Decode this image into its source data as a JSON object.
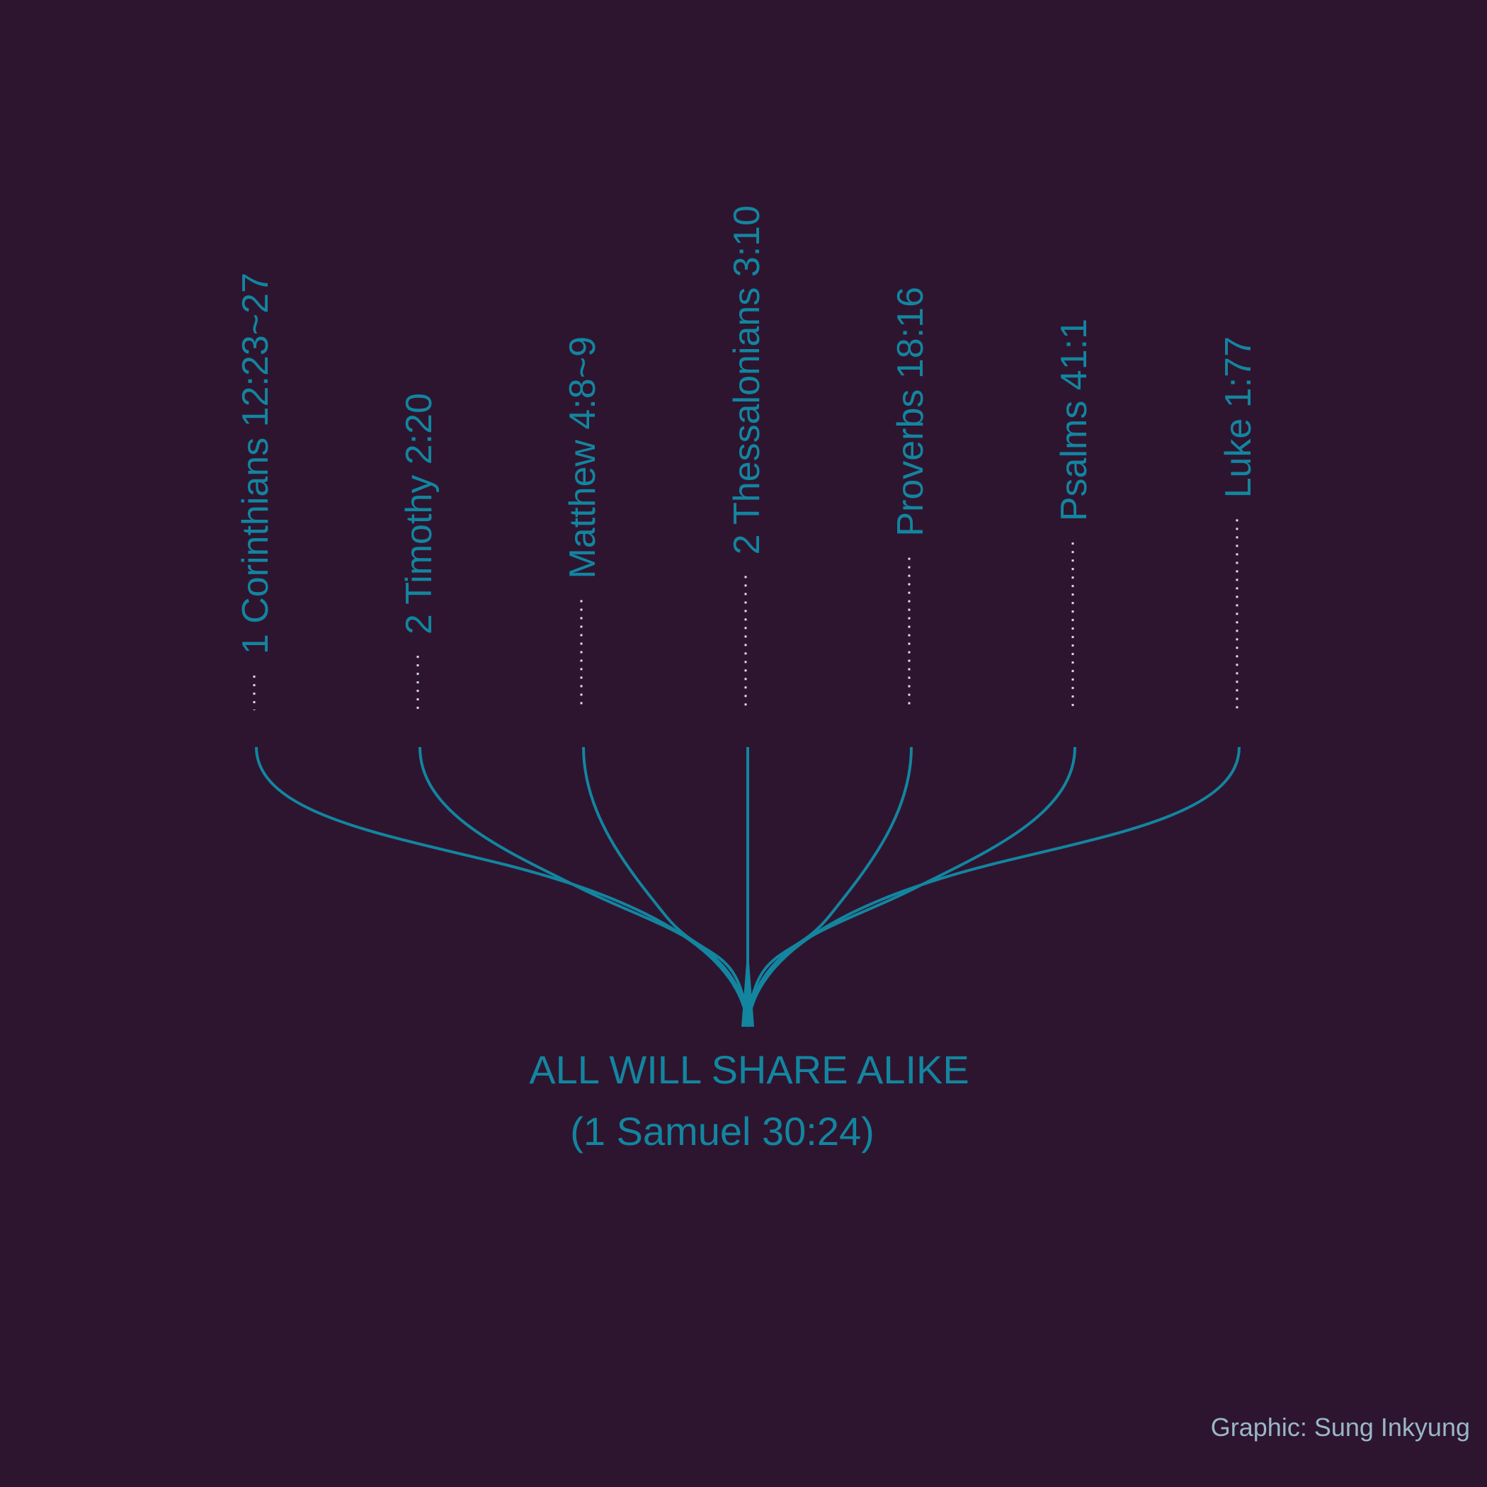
{
  "colors": {
    "background": "#2d1530",
    "accent": "#13859f",
    "dots": "#e0e0e0",
    "credit": "#9ab7c6"
  },
  "references": [
    {
      "label": "1 Corinthians 12:23~27"
    },
    {
      "label": "2 Timothy 2:20"
    },
    {
      "label": "Matthew 4:8~9"
    },
    {
      "label": "2 Thessalonians 3:10"
    },
    {
      "label": "Proverbs 18:16"
    },
    {
      "label": "Psalms 41:1"
    },
    {
      "label": "Luke 1:77"
    }
  ],
  "title": {
    "line1": "ALL WILL SHARE ALIKE",
    "line2": "(1 Samuel 30:24)"
  },
  "credit": "Graphic: Sung Inkyung"
}
